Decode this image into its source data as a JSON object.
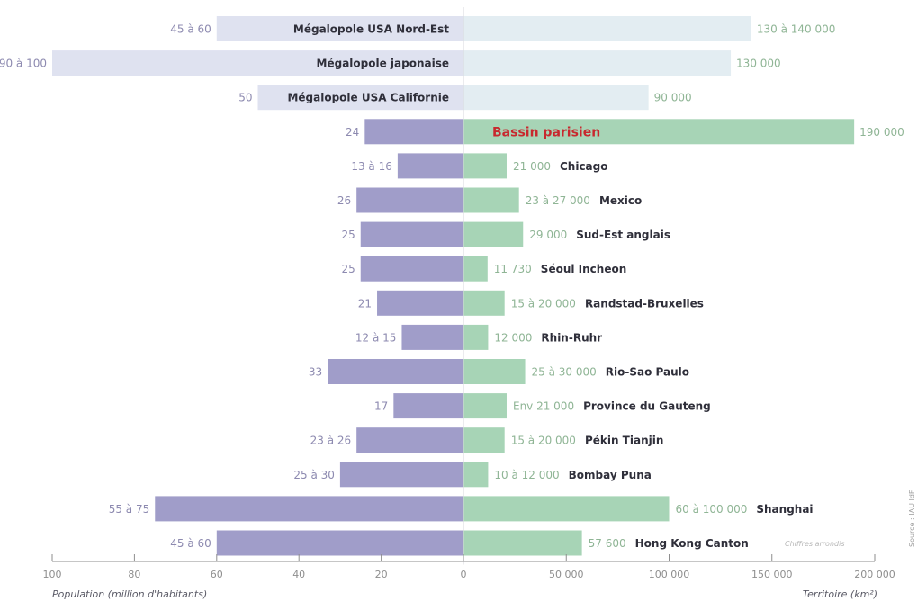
{
  "chart_data": {
    "type": "bar",
    "orientation": "horizontal-diverging",
    "left_axis": {
      "label": "Population (million d'habitants)",
      "range": [
        100,
        0
      ],
      "ticks": [
        "100",
        "80",
        "60",
        "40",
        "20",
        "0"
      ]
    },
    "right_axis": {
      "label": "Territoire (km²)",
      "range": [
        0,
        200000
      ],
      "ticks": [
        "50 000",
        "100 000",
        "150 000",
        "200 000"
      ]
    },
    "note": "Chiffres arrondis",
    "source": "Source : IAU IdF",
    "colors": {
      "left_highlight": "#a09dc9",
      "left_light": "#dfe2f0",
      "right_highlight": "#a7d4b6",
      "right_light": "#e3edf2",
      "highlight_label": "#c8282e"
    },
    "rows": [
      {
        "name": "Mégalopole USA Nord-Est",
        "pop": 60,
        "pop_label": "45 à 60",
        "area": 140000,
        "area_label": "130 à 140 000",
        "style": "light",
        "label_pos": "left-inside"
      },
      {
        "name": "Mégalopole japonaise",
        "pop": 100,
        "pop_label": "90 à 100",
        "area": 130000,
        "area_label": "130 000",
        "style": "light",
        "label_pos": "left-inside"
      },
      {
        "name": "Mégalopole USA Californie",
        "pop": 50,
        "pop_label": "50",
        "area": 90000,
        "area_label": "90 000",
        "style": "light",
        "label_pos": "left-inside"
      },
      {
        "name": "Bassin parisien",
        "pop": 24,
        "pop_label": "24",
        "area": 190000,
        "area_label": "190 000",
        "style": "highlight",
        "label_pos": "right-inside"
      },
      {
        "name": "Chicago",
        "pop": 16,
        "pop_label": "13 à 16",
        "area": 21000,
        "area_label": "21 000",
        "style": "normal",
        "label_pos": "right-after"
      },
      {
        "name": "Mexico",
        "pop": 26,
        "pop_label": "26",
        "area": 27000,
        "area_label": "23 à 27 000",
        "style": "normal",
        "label_pos": "right-after"
      },
      {
        "name": "Sud-Est anglais",
        "pop": 25,
        "pop_label": "25",
        "area": 29000,
        "area_label": "29 000",
        "style": "normal",
        "label_pos": "right-after"
      },
      {
        "name": "Séoul Incheon",
        "pop": 25,
        "pop_label": "25",
        "area": 11730,
        "area_label": "11 730",
        "style": "normal",
        "label_pos": "right-after"
      },
      {
        "name": "Randstad-Bruxelles",
        "pop": 21,
        "pop_label": "21",
        "area": 20000,
        "area_label": "15 à 20 000",
        "style": "normal",
        "label_pos": "right-after"
      },
      {
        "name": "Rhin-Ruhr",
        "pop": 15,
        "pop_label": "12 à 15",
        "area": 12000,
        "area_label": "12 000",
        "style": "normal",
        "label_pos": "right-after"
      },
      {
        "name": "Rio-Sao Paulo",
        "pop": 33,
        "pop_label": "33",
        "area": 30000,
        "area_label": "25 à 30 000",
        "style": "normal",
        "label_pos": "right-after"
      },
      {
        "name": "Province du Gauteng",
        "pop": 17,
        "pop_label": "17",
        "area": 21000,
        "area_label": "Env 21 000",
        "style": "normal",
        "label_pos": "right-after"
      },
      {
        "name": "Pékin Tianjin",
        "pop": 26,
        "pop_label": "23 à 26",
        "area": 20000,
        "area_label": "15 à 20 000",
        "style": "normal",
        "label_pos": "right-after"
      },
      {
        "name": "Bombay Puna",
        "pop": 30,
        "pop_label": "25 à 30",
        "area": 12000,
        "area_label": "10 à 12 000",
        "style": "normal",
        "label_pos": "right-after"
      },
      {
        "name": "Shanghai",
        "pop": 75,
        "pop_label": "55 à 75",
        "area": 100000,
        "area_label": "60 à 100 000",
        "style": "normal",
        "label_pos": "right-after"
      },
      {
        "name": "Hong Kong Canton",
        "pop": 60,
        "pop_label": "45 à 60",
        "area": 57600,
        "area_label": "57 600",
        "style": "normal",
        "label_pos": "right-after"
      }
    ]
  }
}
